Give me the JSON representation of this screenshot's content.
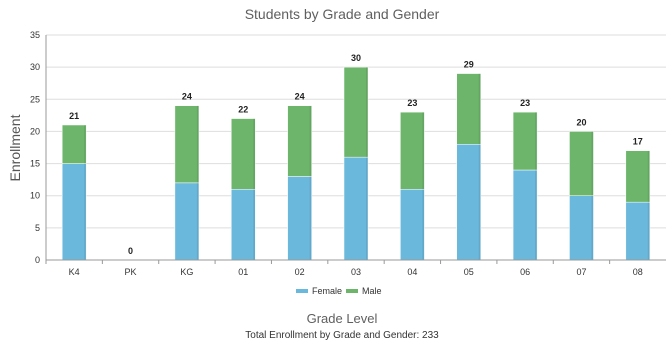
{
  "chart_data": {
    "type": "bar",
    "stacked": true,
    "title": "Students by Grade and Gender",
    "xlabel": "Grade Level",
    "ylabel": "Enrollment",
    "footer": "Total Enrollment by Grade and Gender: 233",
    "categories": [
      "K4",
      "PK",
      "KG",
      "01",
      "02",
      "03",
      "04",
      "05",
      "06",
      "07",
      "08"
    ],
    "series": [
      {
        "name": "Female",
        "color": "#6ab8dc",
        "values": [
          15,
          0,
          12,
          11,
          13,
          16,
          11,
          18,
          14,
          10,
          9
        ]
      },
      {
        "name": "Male",
        "color": "#6cb56a",
        "values": [
          6,
          0,
          12,
          11,
          11,
          14,
          12,
          11,
          9,
          10,
          8
        ]
      }
    ],
    "totals": [
      "21",
      "0",
      "24",
      "22",
      "24",
      "30",
      "23",
      "29",
      "23",
      "20",
      "17"
    ],
    "ylim": [
      0,
      35
    ],
    "yticks": [
      "0",
      "5",
      "10",
      "15",
      "20",
      "25",
      "30",
      "35"
    ],
    "grid": true,
    "legend_position": "bottom"
  }
}
